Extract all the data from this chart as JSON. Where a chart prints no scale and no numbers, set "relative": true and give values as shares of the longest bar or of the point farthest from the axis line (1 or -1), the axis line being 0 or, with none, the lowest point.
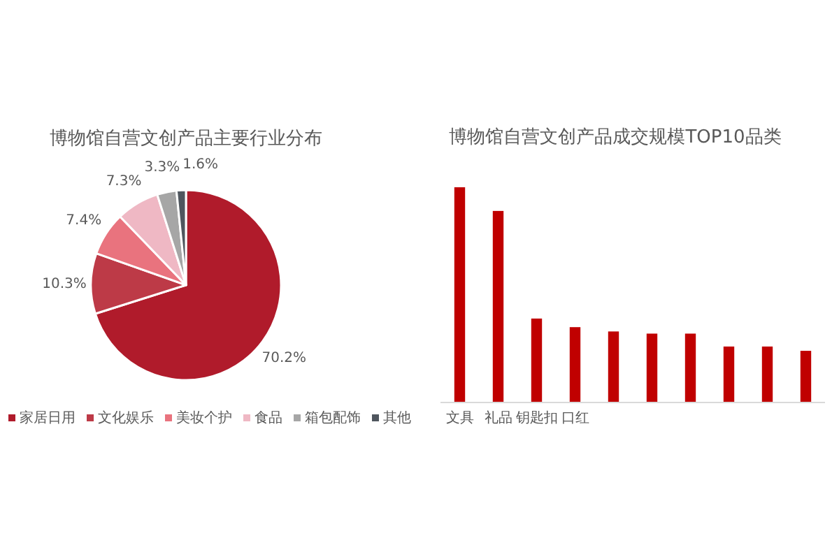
{
  "chart_data": [
    {
      "type": "pie",
      "title": "博物馆自营文创产品主要行业分布",
      "categories": [
        "家居日用",
        "文化娱乐",
        "美妆个护",
        "食品",
        "箱包配饰",
        "其他"
      ],
      "values": [
        70.2,
        10.3,
        7.4,
        7.3,
        3.3,
        1.6
      ],
      "value_labels": [
        "70.2%",
        "10.3%",
        "7.4%",
        "7.3%",
        "3.3%",
        "1.6%"
      ],
      "colors": [
        "#b01b2b",
        "#bd3a47",
        "#e9737e",
        "#efb8c4",
        "#a6a6a6",
        "#4f565e"
      ],
      "legend": "bottom"
    },
    {
      "type": "bar",
      "title": "博物馆自营文创产品成交规模TOP10品类",
      "categories": [
        "文具",
        "礼品",
        "钥匙扣",
        "口红",
        null,
        null,
        null,
        null,
        null,
        null
      ],
      "values": [
        1,
        0.89,
        0.39,
        0.35,
        0.33,
        0.32,
        0.32,
        0.26,
        0.26,
        0.24
      ],
      "relative": true,
      "color": "#c00000"
    }
  ]
}
